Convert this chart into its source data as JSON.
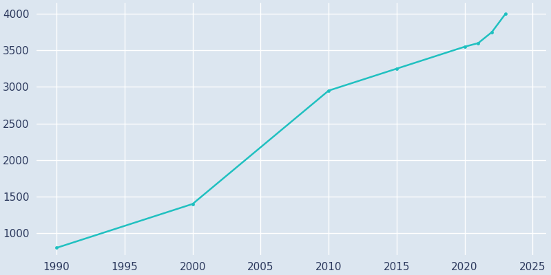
{
  "years": [
    1990,
    2000,
    2010,
    2015,
    2020,
    2021,
    2022,
    2023
  ],
  "population": [
    800,
    1400,
    2950,
    3250,
    3550,
    3600,
    3750,
    4000
  ],
  "line_color": "#20C0C0",
  "marker_color": "#20C0C0",
  "background_color": "#dce6f0",
  "plot_bg_color": "#dce6f0",
  "grid_color": "#ffffff",
  "text_color": "#2d3a5e",
  "xlim": [
    1988.5,
    2026
  ],
  "ylim": [
    700,
    4150
  ],
  "xticks": [
    1990,
    1995,
    2000,
    2005,
    2010,
    2015,
    2020,
    2025
  ],
  "yticks": [
    1000,
    1500,
    2000,
    2500,
    3000,
    3500,
    4000
  ],
  "figsize": [
    8.0,
    4.0
  ],
  "dpi": 100
}
